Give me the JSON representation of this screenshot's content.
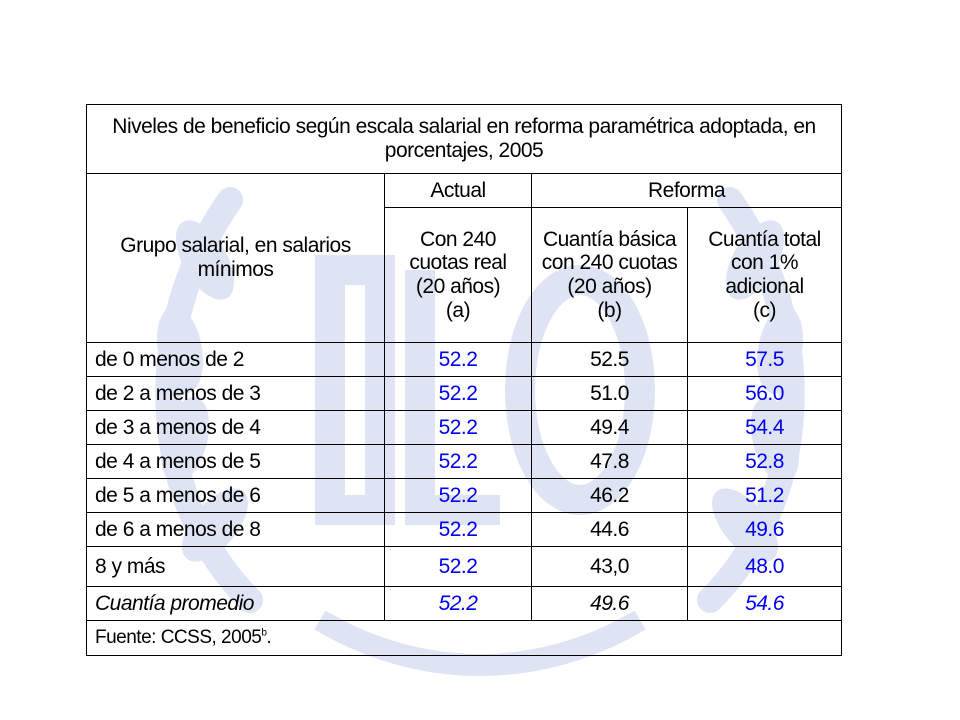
{
  "title": "Niveles de beneficio según escala salarial en reforma paramétrica adoptada, en porcentajes, 2005",
  "headers": {
    "group": "Grupo salarial, en salarios mínimos",
    "actual": "Actual",
    "reforma": "Reforma",
    "col_a": [
      "Con 240",
      "cuotas real",
      "(20 años)",
      "(a)"
    ],
    "col_b": [
      "Cuantía básica",
      "con 240 cuotas",
      "(20 años)",
      "(b)"
    ],
    "col_c": [
      "Cuantía total",
      "con 1%",
      "adicional",
      "(c)"
    ]
  },
  "rows": [
    {
      "group": "de 0 menos de 2",
      "a": "52.2",
      "b": "52.5",
      "c": "57.5"
    },
    {
      "group": "de 2 a menos de 3",
      "a": "52.2",
      "b": "51.0",
      "c": "56.0"
    },
    {
      "group": "de 3 a menos de 4",
      "a": "52.2",
      "b": "49.4",
      "c": "54.4"
    },
    {
      "group": "de 4 a menos de 5",
      "a": "52.2",
      "b": "47.8",
      "c": "52.8"
    },
    {
      "group": "de 5 a menos de 6",
      "a": "52.2",
      "b": "46.2",
      "c": "51.2"
    },
    {
      "group": "de 6 a menos de 8",
      "a": "52.2",
      "b": "44.6",
      "c": "49.6"
    },
    {
      "group": "8 y más",
      "a": "52.2",
      "b": "43,0",
      "c": "48.0"
    }
  ],
  "average": {
    "group": "Cuantía promedio",
    "a": "52.2",
    "b": "49.6",
    "c": "54.6"
  },
  "source": {
    "text": "Fuente: CCSS, 2005",
    "note": "b",
    "end": "."
  },
  "colors": {
    "blue_values": "#0000ee",
    "watermark": "#dfe4f4"
  },
  "icons": {
    "watermark": "ilo-emblem-watermark"
  }
}
